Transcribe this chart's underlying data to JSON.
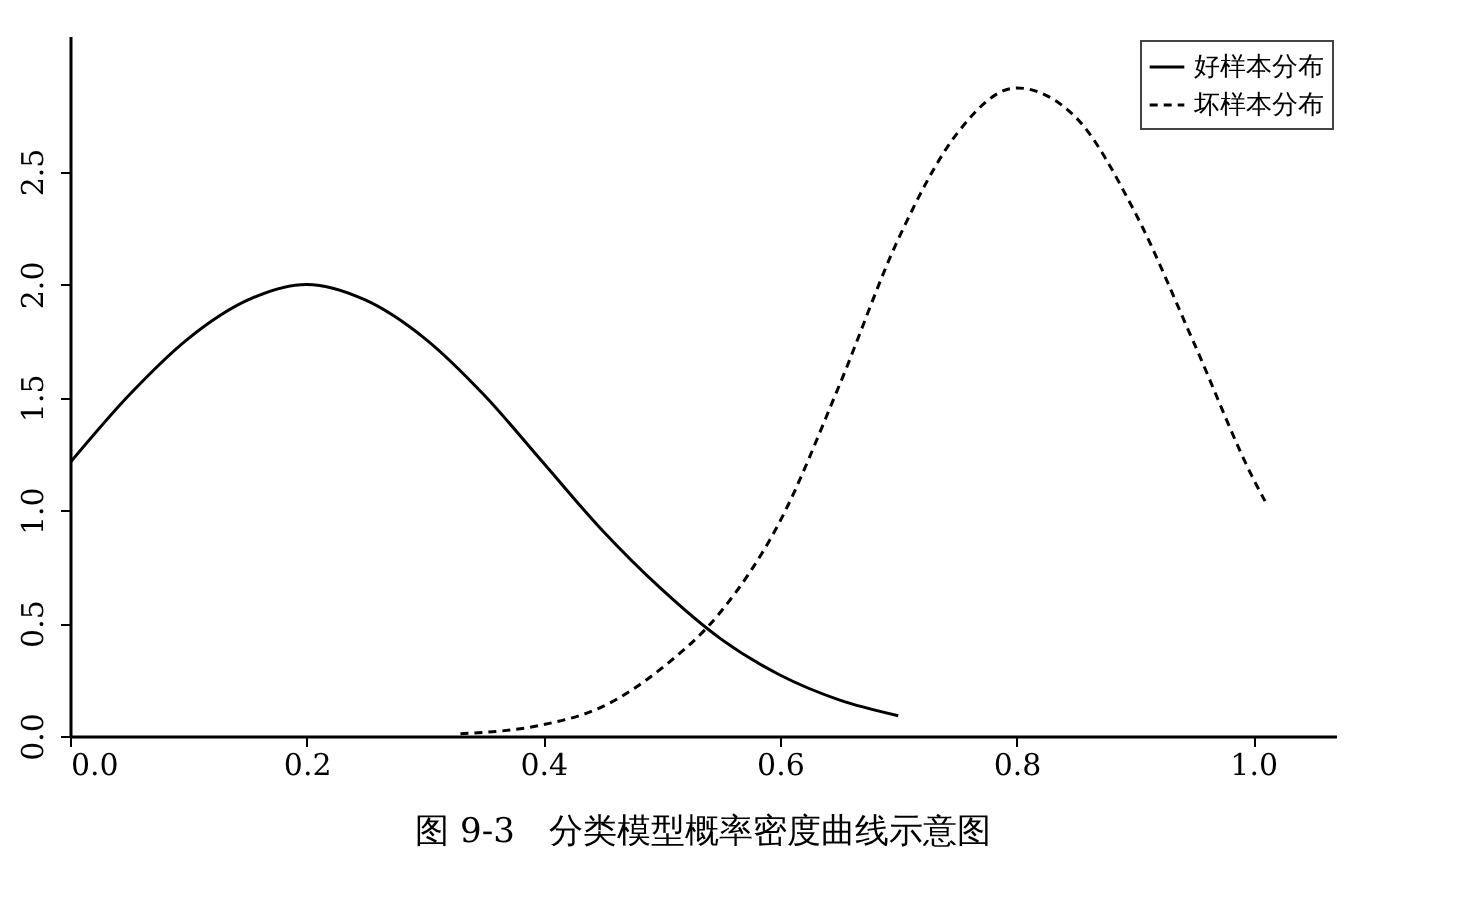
{
  "chart_data": {
    "type": "line",
    "xlim": [
      0,
      1.07
    ],
    "xticks": [
      {
        "value": 0,
        "label": "0.0"
      },
      0.2,
      0.4,
      0.6,
      0.8,
      {
        "value": 1,
        "label": "1.0"
      }
    ],
    "ylim": [
      0,
      3.1
    ],
    "yticks": [
      {
        "value": 0,
        "label": "0.0"
      },
      0.5,
      {
        "value": 1,
        "label": "1.0"
      },
      1.5,
      {
        "value": 2,
        "label": "2.0"
      },
      2.5
    ],
    "grid": false,
    "legend": "top right",
    "marker": "none",
    "series": [
      {
        "name": "好样本分布",
        "color": "#000000",
        "line_style": "solid",
        "x": [
          0,
          0.05,
          0.1,
          0.15,
          0.2,
          0.25,
          0.3,
          0.35,
          0.4,
          0.45,
          0.5,
          0.55,
          0.6,
          0.65,
          0.7
        ],
        "values": [
          1.21,
          1.51,
          1.76,
          1.93,
          2.0,
          1.93,
          1.76,
          1.51,
          1.21,
          0.91,
          0.65,
          0.43,
          0.27,
          0.16,
          0.09
        ]
      },
      {
        "name": "坏样本分布",
        "color": "#000000",
        "line_style": "dashed",
        "x": [
          0.33,
          0.4,
          0.45,
          0.5,
          0.55,
          0.6,
          0.65,
          0.7,
          0.75,
          0.8,
          0.85,
          0.9,
          0.95,
          1.0,
          1.01
        ],
        "values": [
          0.01,
          0.05,
          0.13,
          0.3,
          0.55,
          0.95,
          1.55,
          2.2,
          2.67,
          2.87,
          2.74,
          2.32,
          1.74,
          1.14,
          1.04
        ]
      }
    ],
    "annotations": [
      "图 9-3　分类模型概率密度曲线示意图"
    ]
  }
}
